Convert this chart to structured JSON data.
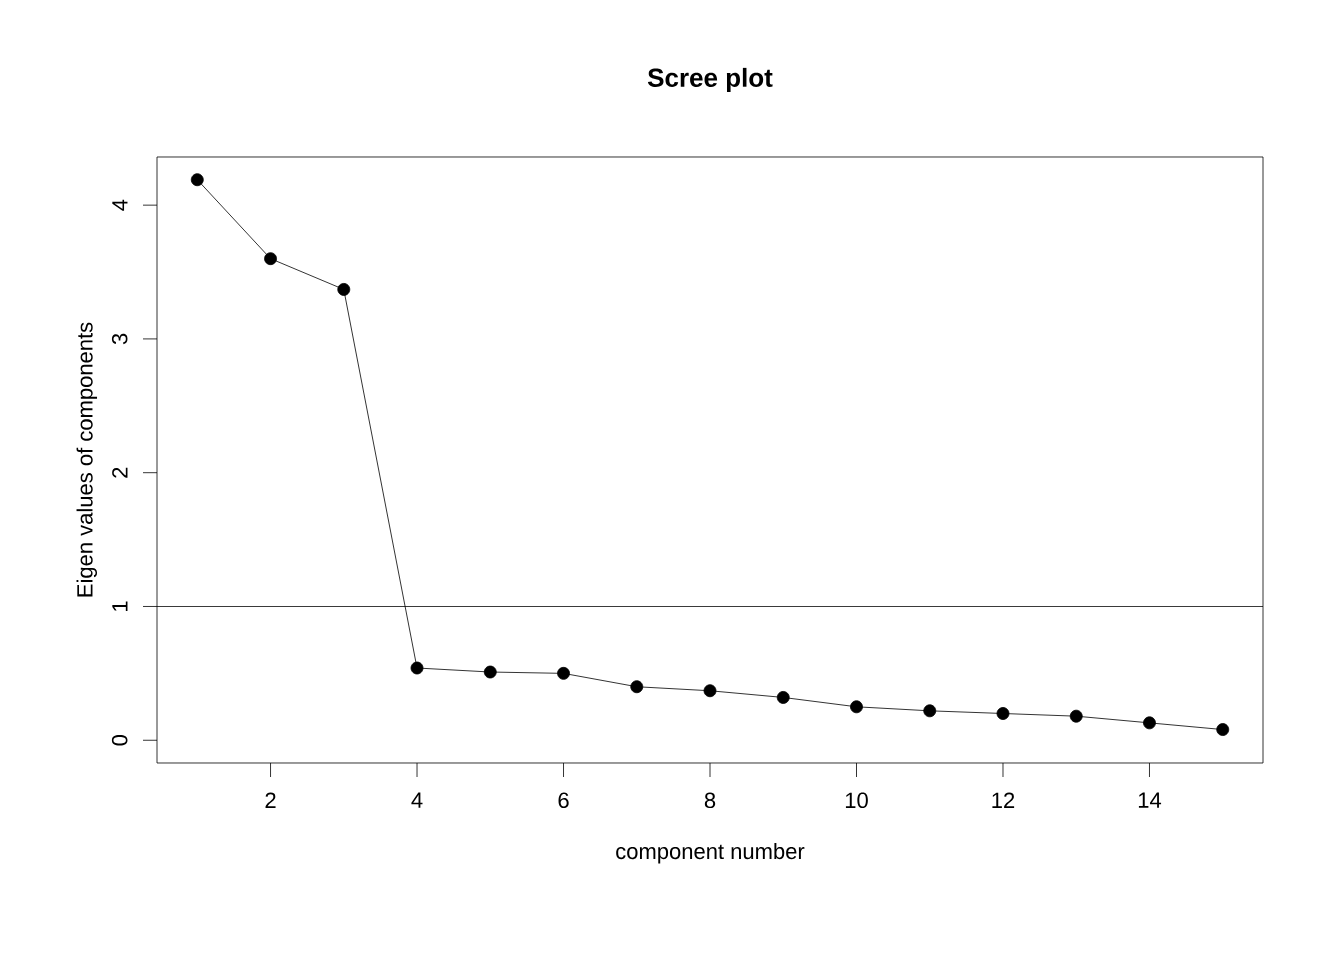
{
  "chart_data": {
    "type": "line",
    "title": "Scree plot",
    "xlabel": "component number",
    "ylabel": "Eigen values of components",
    "x": [
      1,
      2,
      3,
      4,
      5,
      6,
      7,
      8,
      9,
      10,
      11,
      12,
      13,
      14,
      15
    ],
    "values": [
      4.19,
      3.6,
      3.37,
      0.54,
      0.51,
      0.5,
      0.4,
      0.37,
      0.32,
      0.25,
      0.22,
      0.2,
      0.18,
      0.13,
      0.08
    ],
    "color": "#000000",
    "marker": "circle",
    "line_style": "solid",
    "xlim": [
      0.45,
      15.55
    ],
    "ylim": [
      -0.17,
      4.36
    ],
    "xticks": [
      2,
      4,
      6,
      8,
      10,
      12,
      14
    ],
    "yticks": [
      0,
      1,
      2,
      3,
      4
    ],
    "ref_lines": [
      {
        "axis": "y",
        "value": 1,
        "color": "#000000"
      }
    ]
  }
}
